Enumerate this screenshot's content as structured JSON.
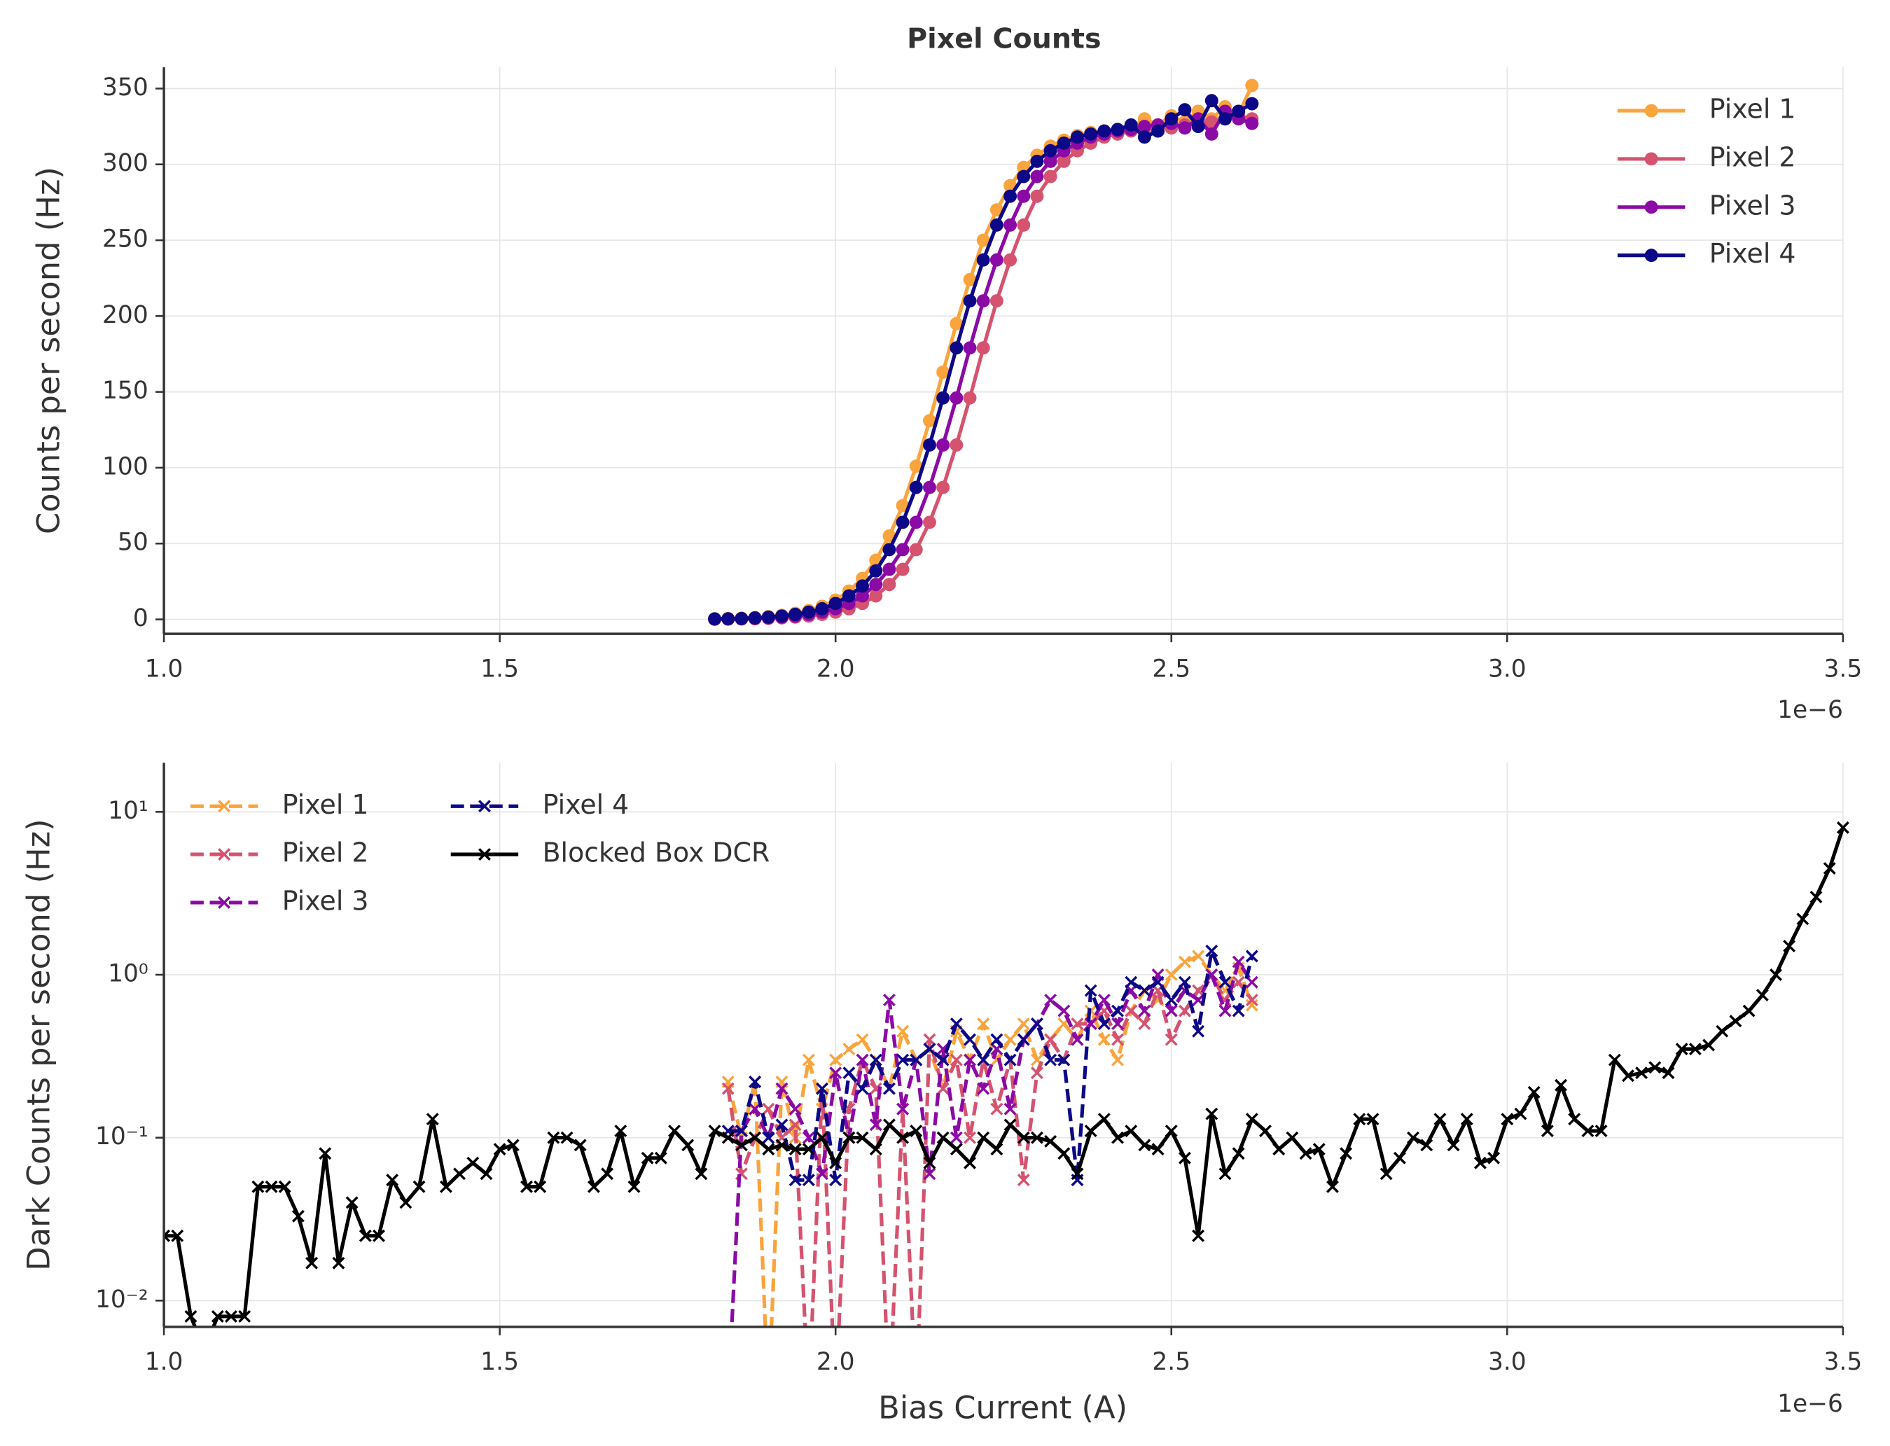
{
  "chart_data": [
    {
      "type": "line",
      "title": "Pixel Counts",
      "ylabel": "Counts per second (Hz)",
      "x_offset_label": "1e−6",
      "xlim": [
        1,
        3.5
      ],
      "xticks": [
        {
          "value": 1,
          "label": "1.0"
        },
        1.5,
        {
          "value": 2,
          "label": "2.0"
        },
        2.5,
        {
          "value": 3,
          "label": "3.0"
        },
        3.5
      ],
      "ylim": [
        -9.5,
        364
      ],
      "yticks": [
        0,
        50,
        100,
        150,
        200,
        250,
        300,
        350
      ],
      "grid": true,
      "legend": "upper right",
      "marker": "o",
      "x": [
        1.82,
        1.84,
        1.86,
        1.88,
        1.9,
        1.92,
        1.94,
        1.96,
        1.98,
        2.0,
        2.02,
        2.04,
        2.06,
        2.08,
        2.1,
        2.12,
        2.14,
        2.16,
        2.18,
        2.2,
        2.22,
        2.24,
        2.26,
        2.28,
        2.3,
        2.32,
        2.34,
        2.36,
        2.38,
        2.4,
        2.42,
        2.44,
        2.46,
        2.48,
        2.5,
        2.52,
        2.54,
        2.56,
        2.58,
        2.6,
        2.62
      ],
      "series": [
        {
          "name": "Pixel 1",
          "color": "#f9a43c",
          "values": [
            0.4,
            0.5,
            0.8,
            1.2,
            1.8,
            2.7,
            4,
            5.8,
            8.6,
            12.7,
            18.7,
            27,
            39,
            55,
            75,
            101,
            131,
            163,
            195,
            224,
            250,
            270,
            286,
            298,
            306,
            312,
            316,
            319,
            321,
            322,
            323,
            324,
            330,
            326,
            332,
            328,
            335,
            330,
            338,
            333,
            352
          ]
        },
        {
          "name": "Pixel 2",
          "color": "#d5536f",
          "values": [
            0.1,
            0.2,
            0.3,
            0.4,
            0.7,
            1,
            1.5,
            2.2,
            3.3,
            4.8,
            7,
            10.5,
            15.5,
            23,
            33,
            46,
            64,
            87,
            115,
            146,
            179,
            210,
            237,
            260,
            279,
            292,
            302,
            309,
            314,
            318,
            320,
            322,
            323,
            325,
            324,
            326,
            327,
            328,
            330,
            332,
            330
          ]
        },
        {
          "name": "Pixel 3",
          "color": "#8b0aa5",
          "values": [
            0.2,
            0.3,
            0.4,
            0.7,
            1,
            1.5,
            2.2,
            3.3,
            4.8,
            7,
            10.5,
            15.5,
            23,
            33,
            46,
            64,
            87,
            115,
            146,
            179,
            210,
            237,
            260,
            279,
            292,
            302,
            309,
            314,
            318,
            320,
            322,
            323,
            325,
            326,
            327,
            324,
            330,
            320,
            335,
            330,
            327
          ]
        },
        {
          "name": "Pixel 4",
          "color": "#0d0887",
          "values": [
            0.3,
            0.4,
            0.6,
            1,
            1.5,
            2.2,
            3.3,
            4.8,
            7,
            10.5,
            15.5,
            22,
            32,
            46,
            64,
            87,
            115,
            146,
            179,
            210,
            237,
            260,
            279,
            292,
            302,
            309,
            314,
            318,
            320,
            322,
            323,
            326,
            318,
            322,
            330,
            336,
            325,
            342,
            330,
            335,
            340
          ]
        }
      ]
    },
    {
      "type": "line",
      "ylabel": "Dark Counts per second (Hz)",
      "xlabel": "Bias Current (A)",
      "x_offset_label": "1e−6",
      "xlim": [
        1,
        3.5
      ],
      "xticks": [
        {
          "value": 1,
          "label": "1.0"
        },
        1.5,
        {
          "value": 2,
          "label": "2.0"
        },
        2.5,
        {
          "value": 3,
          "label": "3.0"
        },
        3.5
      ],
      "y_scale": "log",
      "ylim": [
        0.0069,
        20
      ],
      "yticks": [
        {
          "value": 0.01,
          "label": "10⁻²"
        },
        {
          "value": 0.1,
          "label": "10⁻¹"
        },
        {
          "value": 1,
          "label": "10⁰"
        },
        {
          "value": 10,
          "label": "10¹"
        }
      ],
      "grid": true,
      "legend": "upper left",
      "legend_columns": 2,
      "marker": "x",
      "series": [
        {
          "name": "Pixel 1",
          "color": "#f9a43c",
          "linestyle": "dashed",
          "x": [
            1.84,
            1.86,
            1.88,
            1.9,
            1.92,
            1.94,
            1.96,
            1.98,
            2.0,
            2.02,
            2.04,
            2.06,
            2.08,
            2.1,
            2.12,
            2.14,
            2.16,
            2.18,
            2.2,
            2.22,
            2.24,
            2.26,
            2.28,
            2.3,
            2.32,
            2.34,
            2.36,
            2.38,
            2.4,
            2.42,
            2.44,
            2.46,
            2.48,
            2.5,
            2.52,
            2.54,
            2.56,
            2.58,
            2.6,
            2.62
          ],
          "values": [
            0.22,
            0.1,
            0.22,
            0,
            0.22,
            0.1,
            0.3,
            0.15,
            0.3,
            0.35,
            0.4,
            0.3,
            0.2,
            0.45,
            0.3,
            0.35,
            0.2,
            0.45,
            0.3,
            0.5,
            0.3,
            0.4,
            0.5,
            0.3,
            0.4,
            0.5,
            0.4,
            0.6,
            0.4,
            0.3,
            0.6,
            0.8,
            0.7,
            1.0,
            1.2,
            1.3,
            1.0,
            0.8,
            1.1,
            0.65
          ]
        },
        {
          "name": "Pixel 2",
          "color": "#d5536f",
          "linestyle": "dashed",
          "x": [
            1.84,
            1.86,
            1.88,
            1.9,
            1.92,
            1.94,
            1.96,
            1.98,
            2.0,
            2.02,
            2.04,
            2.06,
            2.08,
            2.1,
            2.12,
            2.14,
            2.16,
            2.18,
            2.2,
            2.22,
            2.24,
            2.26,
            2.28,
            2.3,
            2.32,
            2.34,
            2.36,
            2.38,
            2.4,
            2.42,
            2.44,
            2.46,
            2.48,
            2.5,
            2.52,
            2.54,
            2.56,
            2.58,
            2.6,
            2.62
          ],
          "values": [
            0.2,
            0.06,
            0.1,
            0.15,
            0.1,
            0.12,
            0,
            0.2,
            0,
            0.15,
            0.3,
            0.2,
            0,
            0.15,
            0,
            0.4,
            0.2,
            0.3,
            0.1,
            0.3,
            0.15,
            0.3,
            0.055,
            0.25,
            0.4,
            0.3,
            0.5,
            0.5,
            0.6,
            0.4,
            0.6,
            0.5,
            0.8,
            0.4,
            0.6,
            0.8,
            1.0,
            0.7,
            0.9,
            0.7
          ]
        },
        {
          "name": "Pixel 3",
          "color": "#8b0aa5",
          "linestyle": "dashed",
          "x": [
            1.84,
            1.86,
            1.88,
            1.9,
            1.92,
            1.94,
            1.96,
            1.98,
            2.0,
            2.02,
            2.04,
            2.06,
            2.08,
            2.1,
            2.12,
            2.14,
            2.16,
            2.18,
            2.2,
            2.22,
            2.24,
            2.26,
            2.28,
            2.3,
            2.32,
            2.34,
            2.36,
            2.38,
            2.4,
            2.42,
            2.44,
            2.46,
            2.48,
            2.5,
            2.52,
            2.54,
            2.56,
            2.58,
            2.6,
            2.62
          ],
          "values": [
            0,
            0.11,
            0.15,
            0.1,
            0.2,
            0.15,
            0.1,
            0.06,
            0.25,
            0.1,
            0.3,
            0.12,
            0.7,
            0.15,
            0.3,
            0.06,
            0.35,
            0.1,
            0.3,
            0.2,
            0.35,
            0.15,
            0.4,
            0.5,
            0.7,
            0.6,
            0.4,
            0.5,
            0.7,
            0.5,
            0.8,
            0.6,
            1.0,
            0.6,
            0.8,
            0.7,
            1.0,
            0.6,
            1.2,
            0.9
          ]
        },
        {
          "name": "Pixel 4",
          "color": "#0d0887",
          "linestyle": "dashed",
          "x": [
            1.84,
            1.86,
            1.88,
            1.9,
            1.92,
            1.94,
            1.96,
            1.98,
            2.0,
            2.02,
            2.04,
            2.06,
            2.08,
            2.1,
            2.12,
            2.14,
            2.16,
            2.18,
            2.2,
            2.22,
            2.24,
            2.26,
            2.28,
            2.3,
            2.32,
            2.34,
            2.36,
            2.38,
            2.4,
            2.42,
            2.44,
            2.46,
            2.48,
            2.5,
            2.52,
            2.54,
            2.56,
            2.58,
            2.6,
            2.62
          ],
          "values": [
            0.11,
            0.11,
            0.22,
            0.1,
            0.12,
            0.055,
            0.055,
            0.2,
            0.055,
            0.25,
            0.2,
            0.3,
            0.2,
            0.3,
            0.3,
            0.35,
            0.3,
            0.5,
            0.4,
            0.3,
            0.4,
            0.3,
            0.4,
            0.5,
            0.3,
            0.3,
            0.055,
            0.8,
            0.5,
            0.6,
            0.9,
            0.8,
            0.9,
            0.7,
            0.9,
            0.45,
            1.4,
            0.9,
            0.6,
            1.3
          ]
        },
        {
          "name": "Blocked Box DCR",
          "color": "#000000",
          "linestyle": "solid",
          "x": [
            1.0,
            1.02,
            1.04,
            1.06,
            1.08,
            1.1,
            1.12,
            1.14,
            1.16,
            1.18,
            1.2,
            1.22,
            1.24,
            1.26,
            1.28,
            1.3,
            1.32,
            1.34,
            1.36,
            1.38,
            1.4,
            1.42,
            1.44,
            1.46,
            1.48,
            1.5,
            1.52,
            1.54,
            1.56,
            1.58,
            1.6,
            1.62,
            1.64,
            1.66,
            1.68,
            1.7,
            1.72,
            1.74,
            1.76,
            1.78,
            1.8,
            1.82,
            1.84,
            1.86,
            1.88,
            1.9,
            1.92,
            1.94,
            1.96,
            1.98,
            2.0,
            2.02,
            2.04,
            2.06,
            2.08,
            2.1,
            2.12,
            2.14,
            2.16,
            2.18,
            2.2,
            2.22,
            2.24,
            2.26,
            2.28,
            2.3,
            2.32,
            2.34,
            2.36,
            2.38,
            2.4,
            2.42,
            2.44,
            2.46,
            2.48,
            2.5,
            2.52,
            2.54,
            2.56,
            2.58,
            2.6,
            2.62,
            2.64,
            2.66,
            2.68,
            2.7,
            2.72,
            2.74,
            2.76,
            2.78,
            2.8,
            2.82,
            2.84,
            2.86,
            2.88,
            2.9,
            2.92,
            2.94,
            2.96,
            2.98,
            3.0,
            3.02,
            3.04,
            3.06,
            3.08,
            3.1,
            3.12,
            3.14,
            3.16,
            3.18,
            3.2,
            3.22,
            3.24,
            3.26,
            3.28,
            3.3,
            3.32,
            3.34,
            3.36,
            3.38,
            3.4,
            3.42,
            3.44,
            3.46,
            3.48,
            3.5
          ],
          "values": [
            0.025,
            0.025,
            0.008,
            0.005,
            0.008,
            0.008,
            0.008,
            0.05,
            0.05,
            0.05,
            0.033,
            0.017,
            0.08,
            0.017,
            0.04,
            0.025,
            0.025,
            0.055,
            0.04,
            0.05,
            0.13,
            0.05,
            0.06,
            0.07,
            0.06,
            0.085,
            0.09,
            0.05,
            0.05,
            0.1,
            0.1,
            0.09,
            0.05,
            0.06,
            0.11,
            0.05,
            0.075,
            0.075,
            0.11,
            0.09,
            0.06,
            0.11,
            0.1,
            0.09,
            0.1,
            0.085,
            0.09,
            0.085,
            0.085,
            0.1,
            0.07,
            0.1,
            0.1,
            0.085,
            0.12,
            0.1,
            0.11,
            0.07,
            0.1,
            0.085,
            0.07,
            0.1,
            0.085,
            0.12,
            0.1,
            0.1,
            0.095,
            0.08,
            0.06,
            0.11,
            0.13,
            0.1,
            0.11,
            0.09,
            0.085,
            0.11,
            0.075,
            0.025,
            0.14,
            0.06,
            0.08,
            0.13,
            0.11,
            0.085,
            0.1,
            0.08,
            0.085,
            0.05,
            0.08,
            0.13,
            0.13,
            0.06,
            0.075,
            0.1,
            0.09,
            0.13,
            0.09,
            0.13,
            0.07,
            0.075,
            0.13,
            0.14,
            0.19,
            0.11,
            0.21,
            0.13,
            0.11,
            0.11,
            0.3,
            0.24,
            0.25,
            0.27,
            0.25,
            0.35,
            0.35,
            0.37,
            0.45,
            0.52,
            0.6,
            0.75,
            1.0,
            1.5,
            2.2,
            3.0,
            4.5,
            8.0
          ]
        }
      ]
    }
  ]
}
